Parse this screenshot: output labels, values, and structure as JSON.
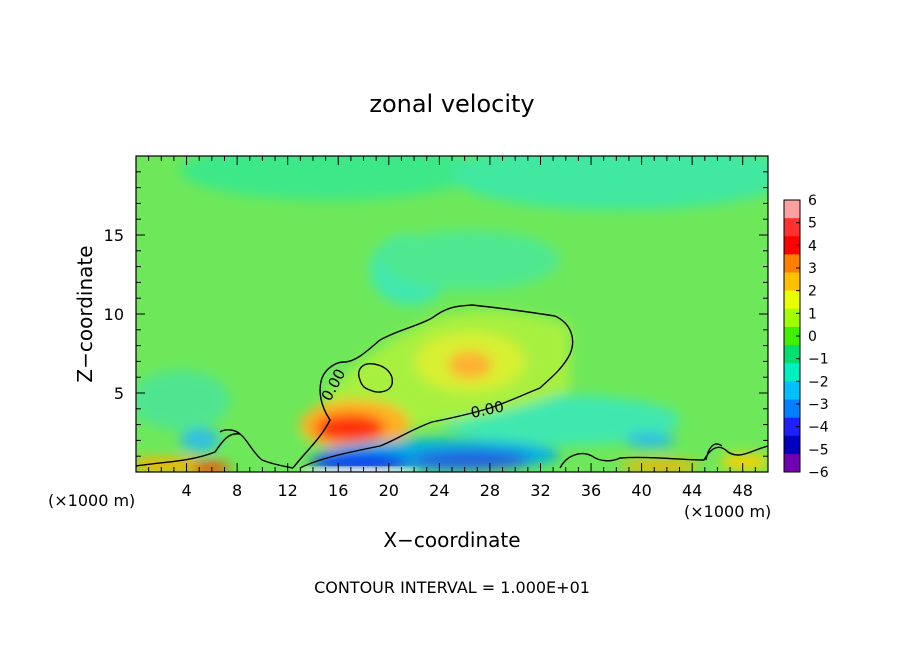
{
  "chart_data": {
    "type": "heatmap",
    "title": "zonal velocity",
    "xlabel": "X−coordinate",
    "ylabel": "Z−coordinate",
    "x_unit_left": "(×1000 m)",
    "x_unit_right": "(×1000 m)",
    "footer": "CONTOUR INTERVAL = 1.000E+01",
    "xlim": [
      0,
      50
    ],
    "ylim": [
      0,
      20
    ],
    "x_ticks": [
      4,
      8,
      12,
      16,
      20,
      24,
      28,
      32,
      36,
      40,
      44,
      48
    ],
    "x_tick_labels": [
      "4",
      "8",
      "12",
      "16",
      "20",
      "24",
      "28",
      "32",
      "36",
      "40",
      "44",
      "48"
    ],
    "y_ticks": [
      5,
      10,
      15
    ],
    "y_tick_labels": [
      "5",
      "10",
      "15"
    ],
    "contour_labels": [
      "0.00",
      "0.00"
    ],
    "colorbar": {
      "levels": [
        "6",
        "5",
        "4",
        "3",
        "2",
        "1",
        "0",
        "−1",
        "−2",
        "−3",
        "−4",
        "−5",
        "−6"
      ],
      "colors": [
        "#ffa0a0",
        "#ff3030",
        "#ff0000",
        "#ff8000",
        "#ffc000",
        "#e8ff00",
        "#a0ff00",
        "#40f000",
        "#00e070",
        "#00f0c0",
        "#00c0ff",
        "#0080ff",
        "#2020ff",
        "#0000c0",
        "#7000b0"
      ]
    },
    "features": [
      {
        "name": "positive core",
        "x": 16,
        "z": 3,
        "value": 4
      },
      {
        "name": "positive region",
        "x": 26,
        "z": 6.5,
        "value": 2
      },
      {
        "name": "negative band",
        "x": 24,
        "z": 1,
        "value": -4
      }
    ]
  }
}
